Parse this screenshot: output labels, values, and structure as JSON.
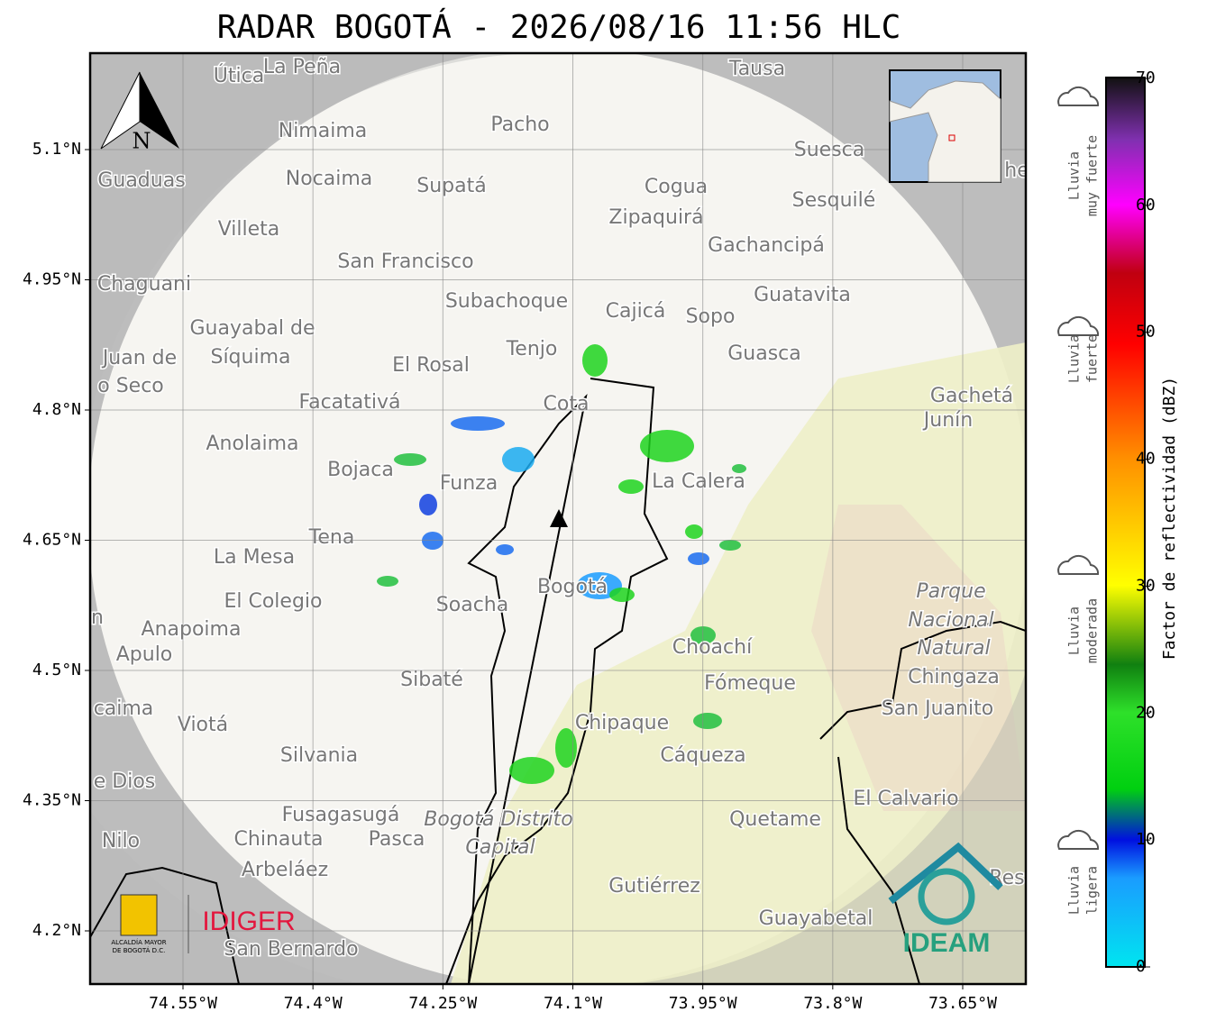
{
  "title": "RADAR BOGOTÁ - 2026/08/16 11:56 HLC",
  "map": {
    "lat_ticks": [
      {
        "value": 5.1,
        "label": "5.1°N"
      },
      {
        "value": 4.95,
        "label": "4.95°N"
      },
      {
        "value": 4.8,
        "label": "4.8°N"
      },
      {
        "value": 4.65,
        "label": "4.65°N"
      },
      {
        "value": 4.5,
        "label": "4.5°N"
      },
      {
        "value": 4.35,
        "label": "4.35°N"
      },
      {
        "value": 4.2,
        "label": "4.2°N"
      }
    ],
    "lon_ticks": [
      {
        "value": -74.55,
        "label": "74.55°W"
      },
      {
        "value": -74.4,
        "label": "74.4°W"
      },
      {
        "value": -74.25,
        "label": "74.25°W"
      },
      {
        "value": -74.1,
        "label": "74.1°W"
      },
      {
        "value": -73.95,
        "label": "73.95°W"
      },
      {
        "value": -73.8,
        "label": "73.8°W"
      },
      {
        "value": -73.65,
        "label": "73.65°W"
      }
    ],
    "north": "N",
    "places": [
      "Útica",
      "La Peña",
      "Tausa",
      "Pacho",
      "Nimaima",
      "Guaduas",
      "Nocaima",
      "Supatá",
      "Cogua",
      "Suesca",
      "Sesquilé",
      "Villeta",
      "Zipaquirá",
      "Gachancipá",
      "San Francisco",
      "Chaguani",
      "Guatavita",
      "Subachoque",
      "Cajicá",
      "Sopo",
      "Guayabal de",
      "Síquima",
      "Tenjo",
      "Guasca",
      "Juan de",
      "o Seco",
      "El Rosal",
      "Cota",
      "Facatativá",
      "Gachetá",
      "Junín",
      "Anolaima",
      "Bojaca",
      "Funza",
      "La Calera",
      "Tena",
      "La Mesa",
      "El Colegio",
      "Anapoima",
      "Soacha",
      "Bogotá",
      "Parque",
      "Nacional",
      "Natural",
      "Chingaza",
      "Apulo",
      "Choachí",
      "Sibaté",
      "Fómeque",
      "San Juanito",
      "caima",
      "Viotá",
      "Chipaque",
      "Silvania",
      "Cáqueza",
      "e Dios",
      "El Calvario",
      "Fusagasugá",
      "Bogotá Distrito",
      "Capital",
      "Quetame",
      "Nilo",
      "Chinauta",
      "Pasca",
      "Arbeláez",
      "Gutiérrez",
      "Res",
      "Guayabetal",
      "San Bernardo",
      "n",
      "he"
    ]
  },
  "colorbar": {
    "label": "Factor de reflectividad (dBZ)",
    "range": [
      0,
      70
    ],
    "ticks": [
      0,
      10,
      20,
      30,
      40,
      50,
      60,
      70
    ]
  },
  "legend": [
    [
      "Lluvia",
      "muy fuerte"
    ],
    [
      "Lluvia",
      "fuerte"
    ],
    [
      "Lluvia",
      "moderada"
    ],
    [
      "Lluvia",
      "ligera"
    ]
  ],
  "logos": {
    "alcaldia": [
      "ALCALDÍA MAYOR",
      "DE BOGOTÁ D.C."
    ],
    "idiger": "IDIGER",
    "ideam": "IDEAM"
  }
}
